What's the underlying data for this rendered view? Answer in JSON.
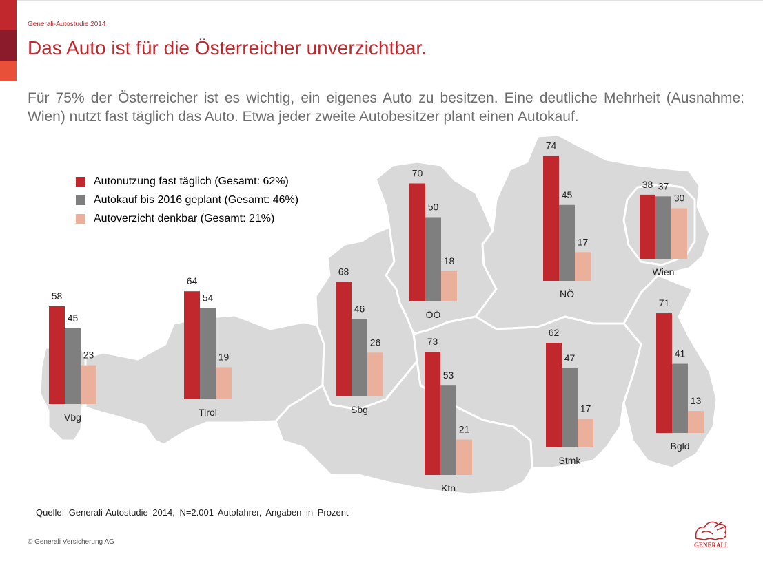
{
  "header": {
    "kicker": "Generali-Autostudie 2014",
    "title": "Das Auto ist für die Österreicher unverzichtbar.",
    "subtitle": "Für 75% der Österreicher ist es wichtig, ein eigenes Auto zu besitzen. Eine deutliche Mehrheit (Ausnahme: Wien) nutzt fast täglich das Auto. Etwa jeder zweite Autobesitzer plant einen Autokauf."
  },
  "colors": {
    "accent_red": "#c0282d",
    "series_red": "#c0282d",
    "series_grey": "#7f7f7f",
    "series_salmon": "#eab09c",
    "map_fill": "#d9d9d9"
  },
  "chart_data": {
    "type": "bar",
    "series_names": [
      "Autonutzung fast täglich (Gesamt: 62%)",
      "Autokauf bis 2016 geplant (Gesamt: 46%)",
      "Autoverzicht denkbar (Gesamt: 21%)"
    ],
    "regions": [
      {
        "name": "Vbg",
        "values": [
          58,
          45,
          23
        ]
      },
      {
        "name": "Tirol",
        "values": [
          64,
          54,
          19
        ]
      },
      {
        "name": "Sbg",
        "values": [
          68,
          46,
          26
        ]
      },
      {
        "name": "OÖ",
        "values": [
          70,
          50,
          18
        ]
      },
      {
        "name": "NÖ",
        "values": [
          74,
          45,
          17
        ]
      },
      {
        "name": "Wien",
        "values": [
          38,
          37,
          30
        ]
      },
      {
        "name": "Ktn",
        "values": [
          73,
          53,
          21
        ]
      },
      {
        "name": "Stmk",
        "values": [
          62,
          47,
          17
        ]
      },
      {
        "name": "Bgld",
        "values": [
          71,
          41,
          13
        ]
      }
    ],
    "unit": "Prozent",
    "background": "map of Austria"
  },
  "footer": {
    "source": "Quelle: Generali-Autostudie 2014, N=2.001 Autofahrer, Angaben in Prozent",
    "copyright": "© Generali Versicherung AG",
    "logo_text": "GENERALI"
  }
}
